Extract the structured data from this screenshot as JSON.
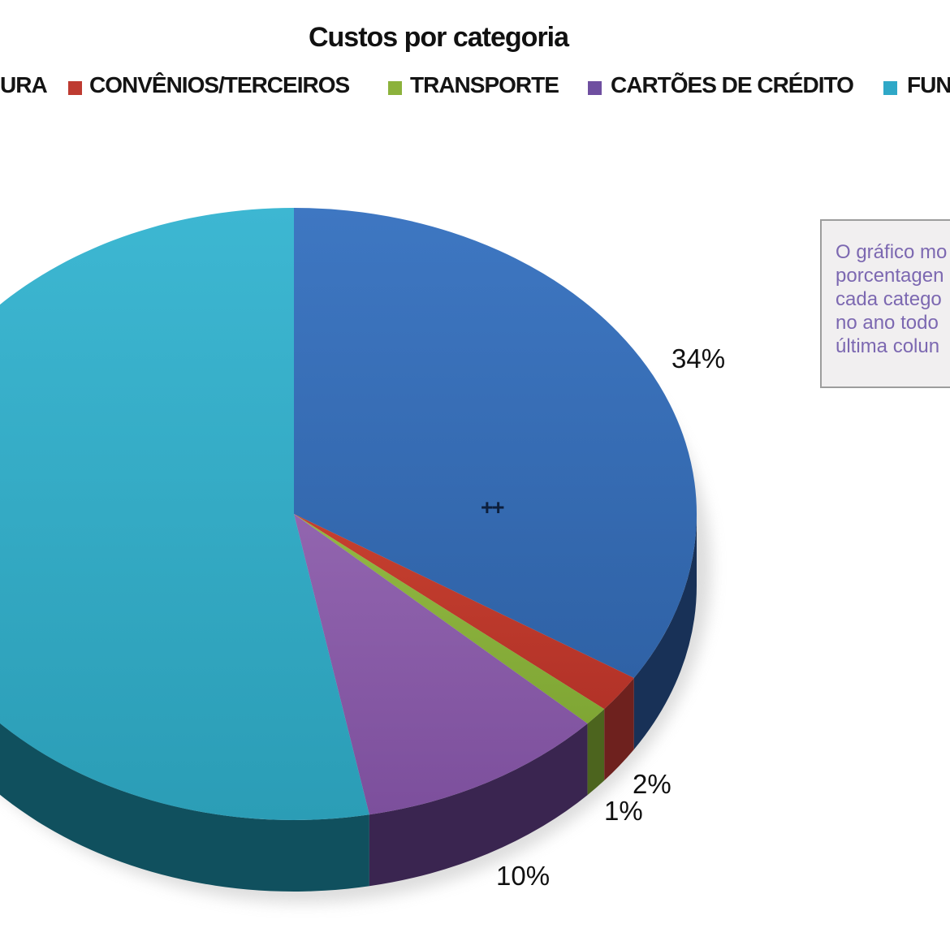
{
  "title": "Custos por categoria",
  "legend": {
    "items": [
      {
        "label": "URA",
        "color": "#3A6FB7",
        "swatch_visible": false,
        "truncated_by_viewport": true
      },
      {
        "label": "CONVÊNIOS/TERCEIROS",
        "color": "#BE3B31",
        "swatch_visible": true
      },
      {
        "label": "TRANSPORTE",
        "color": "#8CB23C",
        "swatch_visible": true
      },
      {
        "label": "CARTÕES DE CRÉDITO",
        "color": "#6F4FA0",
        "swatch_visible": true
      },
      {
        "label": "FUN",
        "color": "#2FA8C7",
        "swatch_visible": true,
        "truncated_by_viewport": true
      }
    ]
  },
  "annotation_box": {
    "lines": [
      "O gráfico mo",
      "porcentagen",
      "cada catego",
      "no ano todo",
      "última colun"
    ],
    "text_color": "#7C68B1",
    "background": "#F1EFF0",
    "border_color": "#9D9D9D"
  },
  "center_marker": "++",
  "chart_data": {
    "type": "pie",
    "style": "3d",
    "title": "Custos por categoria",
    "start_angle_deg": 0,
    "direction": "clockwise",
    "legend_position": "top",
    "slices": [
      {
        "category": "URA",
        "value": 34,
        "data_label": "34%",
        "color_top": "#3E77C2",
        "color_top2": "#2F62A6",
        "color_side": "#183157"
      },
      {
        "category": "CONVÊNIOS/TERCEIROS",
        "value": 2,
        "data_label": "2%",
        "color_top": "#C6402F",
        "color_top2": "#B23228",
        "color_side": "#6E211E"
      },
      {
        "category": "TRANSPORTE",
        "value": 1,
        "data_label": "1%",
        "color_top": "#92B843",
        "color_top2": "#7FA634",
        "color_side": "#4C641E"
      },
      {
        "category": "CARTÕES DE CRÉDITO",
        "value": 10,
        "data_label": "10%",
        "color_top": "#9265AF",
        "color_top2": "#7C4F9C",
        "color_side": "#3A2550"
      },
      {
        "category": "FUN",
        "value": 53,
        "data_label": "",
        "color_top": "#3DB7D2",
        "color_top2": "#2B9DB6",
        "color_side": "#10505E"
      }
    ]
  }
}
